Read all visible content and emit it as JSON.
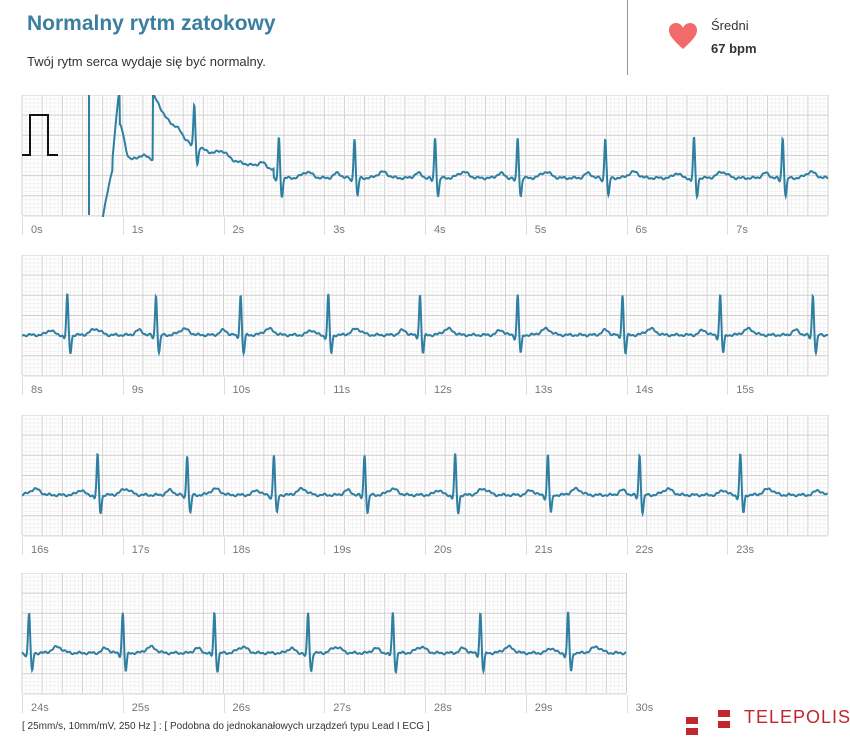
{
  "header": {
    "title": "Normalny rytm zatokowy",
    "subtitle": "Twój rytm serca wydaje się być normalny.",
    "avg_label": "Średni",
    "avg_value": "67 bpm",
    "heart_icon_color": "#f26a6a"
  },
  "footer": {
    "note": "[ 25mm/s, 10mm/mV, 250 Hz ] : [ Podobna do jednokanałowych urządzeń typu Lead I ECG ]",
    "logo_text": "TELEPOLIS",
    "logo_color": "#c0272d"
  },
  "chart_data": {
    "type": "line",
    "trace_color": "#2f7fa3",
    "paper_speed": "25mm/s",
    "gain": "10mm/mV",
    "sample_rate": "250 Hz",
    "xlabel": "",
    "ylabel": "",
    "strips": [
      {
        "start_s": 0,
        "end_s": 8,
        "tick_labels": [
          "0s",
          "1s",
          "2s",
          "3s",
          "4s",
          "5s",
          "6s",
          "7s"
        ]
      },
      {
        "start_s": 8,
        "end_s": 16,
        "tick_labels": [
          "8s",
          "9s",
          "10s",
          "11s",
          "12s",
          "13s",
          "14s",
          "15s"
        ]
      },
      {
        "start_s": 16,
        "end_s": 24,
        "tick_labels": [
          "16s",
          "17s",
          "18s",
          "19s",
          "20s",
          "21s",
          "22s",
          "23s"
        ]
      },
      {
        "start_s": 24,
        "end_s": 30,
        "tick_labels": [
          "24s",
          "25s",
          "26s",
          "27s",
          "28s",
          "29s",
          "30s"
        ]
      }
    ],
    "r_peak_times_s": [
      1.71,
      2.55,
      3.3,
      4.1,
      4.92,
      5.79,
      6.67,
      7.55,
      8.45,
      9.33,
      10.17,
      11.04,
      11.95,
      12.92,
      13.96,
      14.93,
      15.85,
      16.75,
      17.64,
      18.5,
      19.4,
      20.3,
      21.22,
      22.13,
      23.13,
      24.07,
      25.0,
      25.91,
      26.84,
      27.68,
      28.55,
      29.42
    ],
    "r_amplitude_mV": 1.0,
    "s_amplitude_mV": -0.45
  }
}
